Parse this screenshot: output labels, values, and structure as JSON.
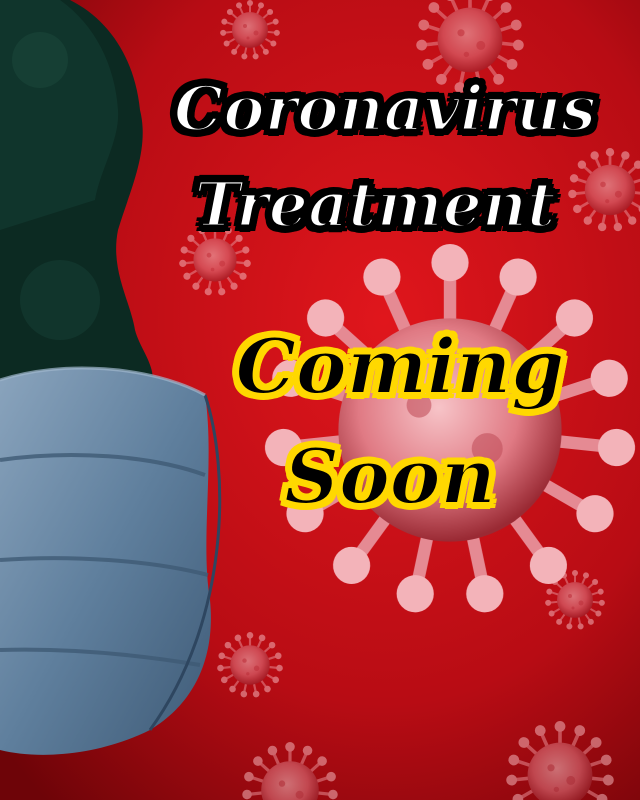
{
  "poster": {
    "title_line1": "Coronavirus",
    "title_line2": "Treatment",
    "subtitle_line1": "Coming",
    "subtitle_line2": "Soon"
  },
  "colors": {
    "background_red": "#c8101a",
    "virus_pink": "#f2a0a8",
    "silhouette": "#0c2a22",
    "mask_blue": "#5f7f9d",
    "title_fill": "#ffffff",
    "title_outline": "#000000",
    "subtitle_fill": "#000000",
    "subtitle_outline": "#ffd800"
  },
  "icons": [
    "coronavirus-icon",
    "face-mask-icon",
    "head-silhouette-icon"
  ]
}
